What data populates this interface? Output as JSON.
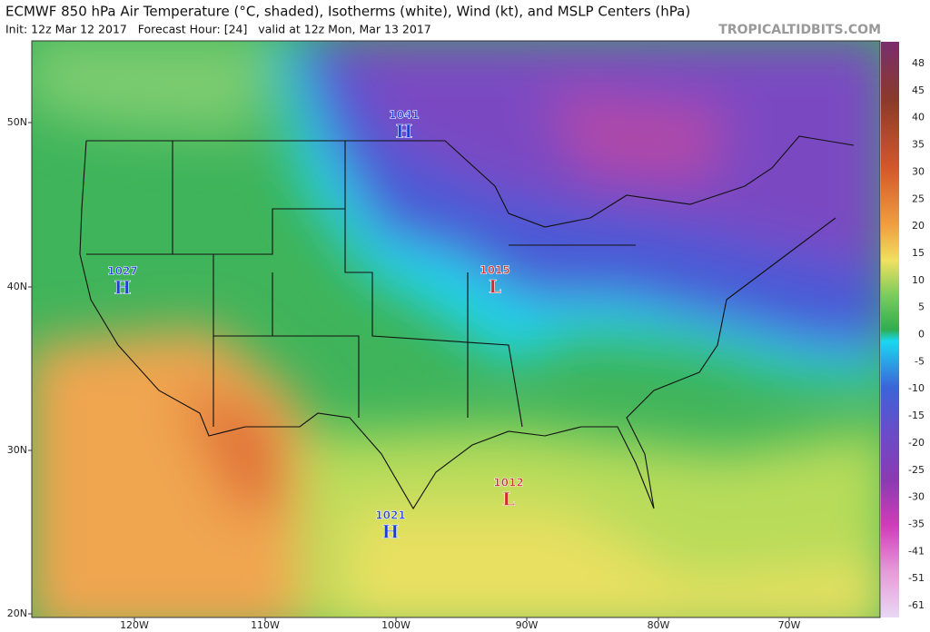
{
  "header": {
    "title": "ECMWF 850 hPa Air Temperature (°C, shaded), Isotherms (white), Wind (kt), and MSLP Centers (hPa)",
    "subtitle": "Init: 12z Mar 12 2017   Forecast Hour: [24]   valid at 12z Mon, Mar 13 2017",
    "source": "TROPICALTIDBITS.COM"
  },
  "map": {
    "lat_labels": [
      "50N",
      "40N",
      "30N",
      "20N"
    ],
    "lon_labels": [
      "120W",
      "110W",
      "100W",
      "90W",
      "80W",
      "70W"
    ],
    "centers": [
      {
        "letter": "H",
        "value": "1041"
      },
      {
        "letter": "H",
        "value": "1027"
      },
      {
        "letter": "L",
        "value": "1015"
      },
      {
        "letter": "L",
        "value": "1012"
      },
      {
        "letter": "H",
        "value": "1021"
      }
    ]
  },
  "colorbar": {
    "labels": [
      "48",
      "45",
      "40",
      "35",
      "30",
      "25",
      "20",
      "15",
      "10",
      "5",
      "0",
      "-5",
      "-10",
      "-15",
      "-20",
      "-25",
      "-30",
      "-35",
      "-41",
      "-51",
      "-61"
    ]
  }
}
